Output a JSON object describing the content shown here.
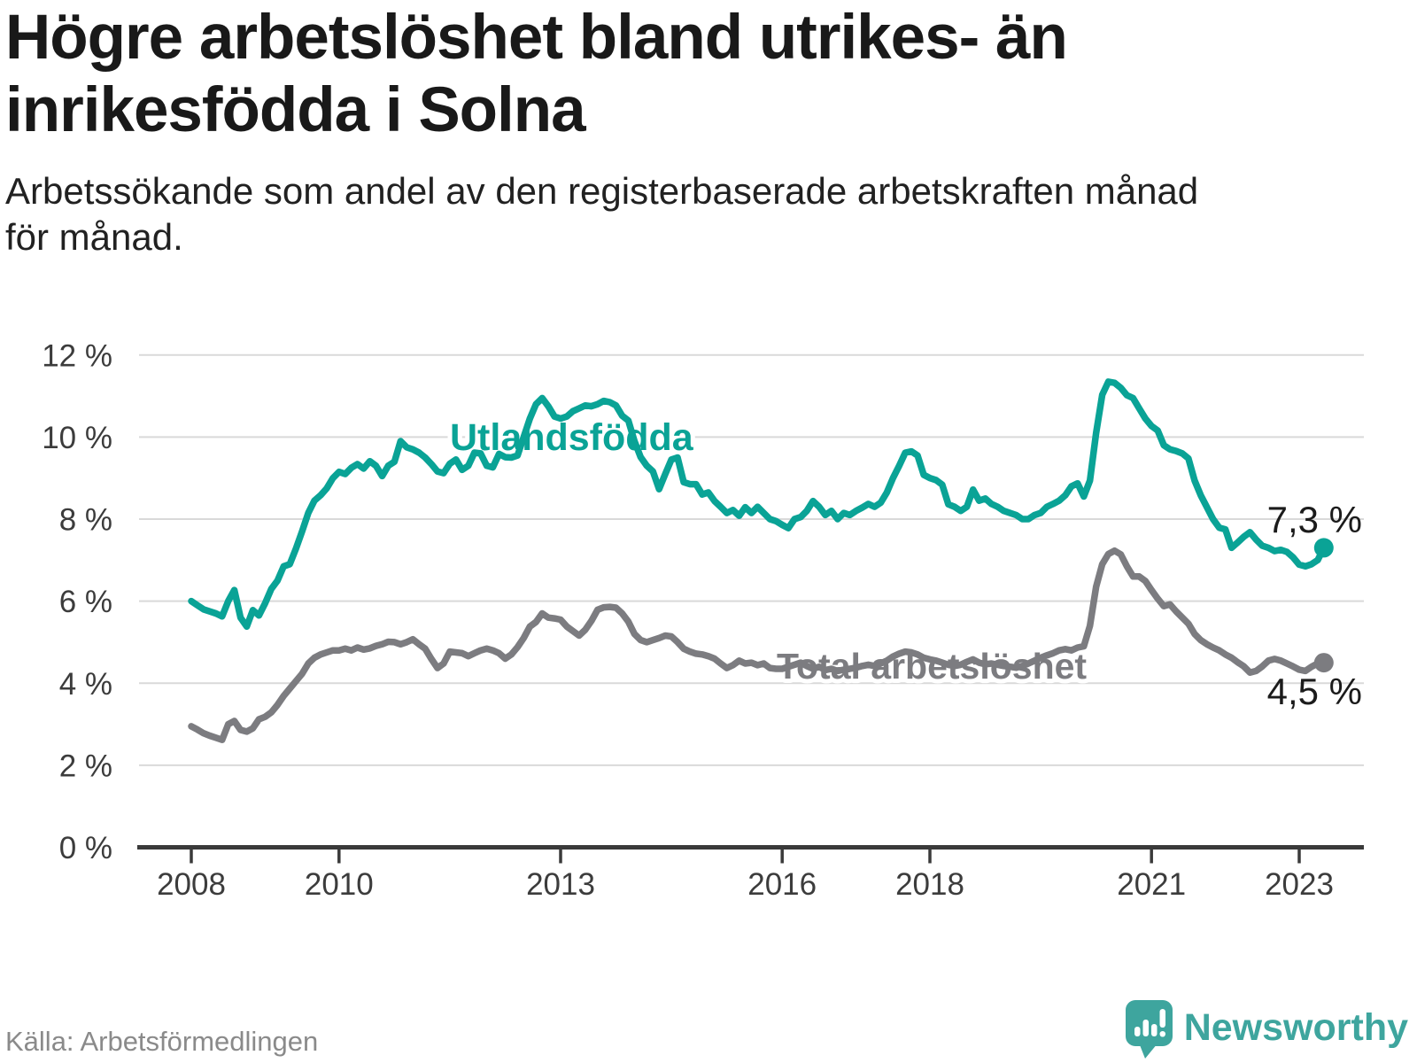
{
  "header": {
    "title_lines": [
      "Högre arbetslöshet bland utrikes- än",
      "inrikesfödda i Solna"
    ],
    "subtitle_lines": [
      "Arbetssökande som andel av den registerbaserade arbetskraften månad",
      "för månad."
    ]
  },
  "footer": {
    "source": "Källa: Arbetsförmedlingen",
    "brand": "Newsworthy"
  },
  "chart_data": {
    "type": "line",
    "unit": "%",
    "title": "Högre arbetslöshet bland utrikes- än inrikesfödda i Solna",
    "x_start": {
      "year": 2008,
      "month": 1
    },
    "x_end": {
      "year": 2023,
      "month": 5
    },
    "frequency": "monthly",
    "ylim": [
      0,
      12
    ],
    "grid": true,
    "legend_position": "inline",
    "y_tick_values": [
      0,
      2,
      4,
      6,
      8,
      10,
      12
    ],
    "y_tick_labels": [
      "0 %",
      "2 %",
      "4 %",
      "6 %",
      "8 %",
      "10 %",
      "12 %"
    ],
    "x_tick_years": [
      2008,
      2010,
      2013,
      2016,
      2018,
      2021,
      2023
    ],
    "x_tick_labels": [
      "2008",
      "2010",
      "2013",
      "2016",
      "2018",
      "2021",
      "2023"
    ],
    "colors": {
      "utlandsfodda": "#0aa396",
      "total": "#7c7c80",
      "grid": "#d9d9d9",
      "axis": "#3a3a3a",
      "tick_text": "#3c3c3c",
      "end_label_text": "#1b1b1b"
    },
    "series": [
      {
        "name": "Utlandsfödda",
        "color": "#0aa396",
        "end_label": "7,3 %",
        "end_value": 7.3,
        "values": [
          6.0,
          5.9,
          5.8,
          5.75,
          5.7,
          5.63,
          6.0,
          6.27,
          5.6,
          5.38,
          5.78,
          5.65,
          5.95,
          6.3,
          6.5,
          6.85,
          6.9,
          7.28,
          7.7,
          8.15,
          8.45,
          8.58,
          8.75,
          9.0,
          9.15,
          9.1,
          9.25,
          9.34,
          9.23,
          9.41,
          9.3,
          9.05,
          9.3,
          9.4,
          9.9,
          9.75,
          9.7,
          9.62,
          9.5,
          9.34,
          9.16,
          9.12,
          9.35,
          9.45,
          9.2,
          9.3,
          9.62,
          9.6,
          9.3,
          9.26,
          9.59,
          9.51,
          9.5,
          9.55,
          10.0,
          10.45,
          10.8,
          10.95,
          10.75,
          10.5,
          10.45,
          10.5,
          10.63,
          10.7,
          10.77,
          10.75,
          10.8,
          10.88,
          10.85,
          10.77,
          10.52,
          10.4,
          9.9,
          9.51,
          9.3,
          9.16,
          8.73,
          9.1,
          9.45,
          9.5,
          8.9,
          8.85,
          8.85,
          8.6,
          8.65,
          8.44,
          8.3,
          8.15,
          8.22,
          8.08,
          8.29,
          8.15,
          8.3,
          8.15,
          8.0,
          7.95,
          7.86,
          7.78,
          8.0,
          8.05,
          8.2,
          8.44,
          8.3,
          8.1,
          8.2,
          8.0,
          8.15,
          8.1,
          8.2,
          8.28,
          8.37,
          8.3,
          8.4,
          8.65,
          9.0,
          9.3,
          9.62,
          9.65,
          9.55,
          9.08,
          9.0,
          8.95,
          8.84,
          8.36,
          8.3,
          8.2,
          8.3,
          8.72,
          8.45,
          8.5,
          8.37,
          8.3,
          8.2,
          8.15,
          8.1,
          8.0,
          8.0,
          8.1,
          8.15,
          8.3,
          8.37,
          8.45,
          8.58,
          8.8,
          8.87,
          8.55,
          8.94,
          10.1,
          11.03,
          11.35,
          11.32,
          11.2,
          11.02,
          10.95,
          10.7,
          10.45,
          10.27,
          10.16,
          9.8,
          9.7,
          9.66,
          9.6,
          9.48,
          8.94,
          8.58,
          8.29,
          8.0,
          7.79,
          7.75,
          7.3,
          7.43,
          7.57,
          7.68,
          7.5,
          7.35,
          7.3,
          7.22,
          7.25,
          7.2,
          7.07,
          6.89,
          6.85,
          6.9,
          7.0,
          7.3
        ]
      },
      {
        "name": "Total arbetslöshet",
        "color": "#7c7c80",
        "end_label": "4,5 %",
        "end_value": 4.5,
        "values": [
          2.95,
          2.87,
          2.78,
          2.72,
          2.67,
          2.62,
          3.0,
          3.08,
          2.86,
          2.82,
          2.9,
          3.12,
          3.18,
          3.29,
          3.47,
          3.69,
          3.87,
          4.05,
          4.23,
          4.48,
          4.62,
          4.7,
          4.75,
          4.8,
          4.8,
          4.84,
          4.8,
          4.87,
          4.82,
          4.85,
          4.91,
          4.95,
          5.01,
          5.0,
          4.95,
          5.0,
          5.07,
          4.95,
          4.84,
          4.59,
          4.37,
          4.48,
          4.77,
          4.75,
          4.73,
          4.66,
          4.73,
          4.8,
          4.84,
          4.8,
          4.73,
          4.6,
          4.7,
          4.88,
          5.1,
          5.38,
          5.49,
          5.7,
          5.6,
          5.58,
          5.55,
          5.38,
          5.27,
          5.16,
          5.3,
          5.52,
          5.79,
          5.85,
          5.86,
          5.84,
          5.7,
          5.5,
          5.2,
          5.05,
          5.0,
          5.05,
          5.1,
          5.16,
          5.14,
          5.0,
          4.84,
          4.77,
          4.72,
          4.7,
          4.66,
          4.6,
          4.48,
          4.37,
          4.44,
          4.55,
          4.48,
          4.5,
          4.44,
          4.48,
          4.37,
          4.35,
          4.35,
          4.4,
          4.45,
          4.5,
          4.42,
          4.35,
          4.4,
          4.32,
          4.35,
          4.3,
          4.33,
          4.35,
          4.38,
          4.42,
          4.45,
          4.42,
          4.48,
          4.55,
          4.65,
          4.72,
          4.77,
          4.75,
          4.7,
          4.62,
          4.58,
          4.55,
          4.5,
          4.45,
          4.42,
          4.45,
          4.52,
          4.58,
          4.5,
          4.46,
          4.48,
          4.45,
          4.42,
          4.4,
          4.38,
          4.42,
          4.48,
          4.55,
          4.62,
          4.68,
          4.73,
          4.8,
          4.83,
          4.8,
          4.87,
          4.9,
          5.4,
          6.35,
          6.9,
          7.15,
          7.23,
          7.14,
          6.85,
          6.6,
          6.6,
          6.49,
          6.27,
          6.06,
          5.88,
          5.92,
          5.75,
          5.6,
          5.45,
          5.2,
          5.05,
          4.95,
          4.87,
          4.8,
          4.7,
          4.62,
          4.51,
          4.41,
          4.26,
          4.3,
          4.41,
          4.55,
          4.59,
          4.55,
          4.48,
          4.41,
          4.33,
          4.3,
          4.4,
          4.48,
          4.5
        ]
      }
    ]
  }
}
